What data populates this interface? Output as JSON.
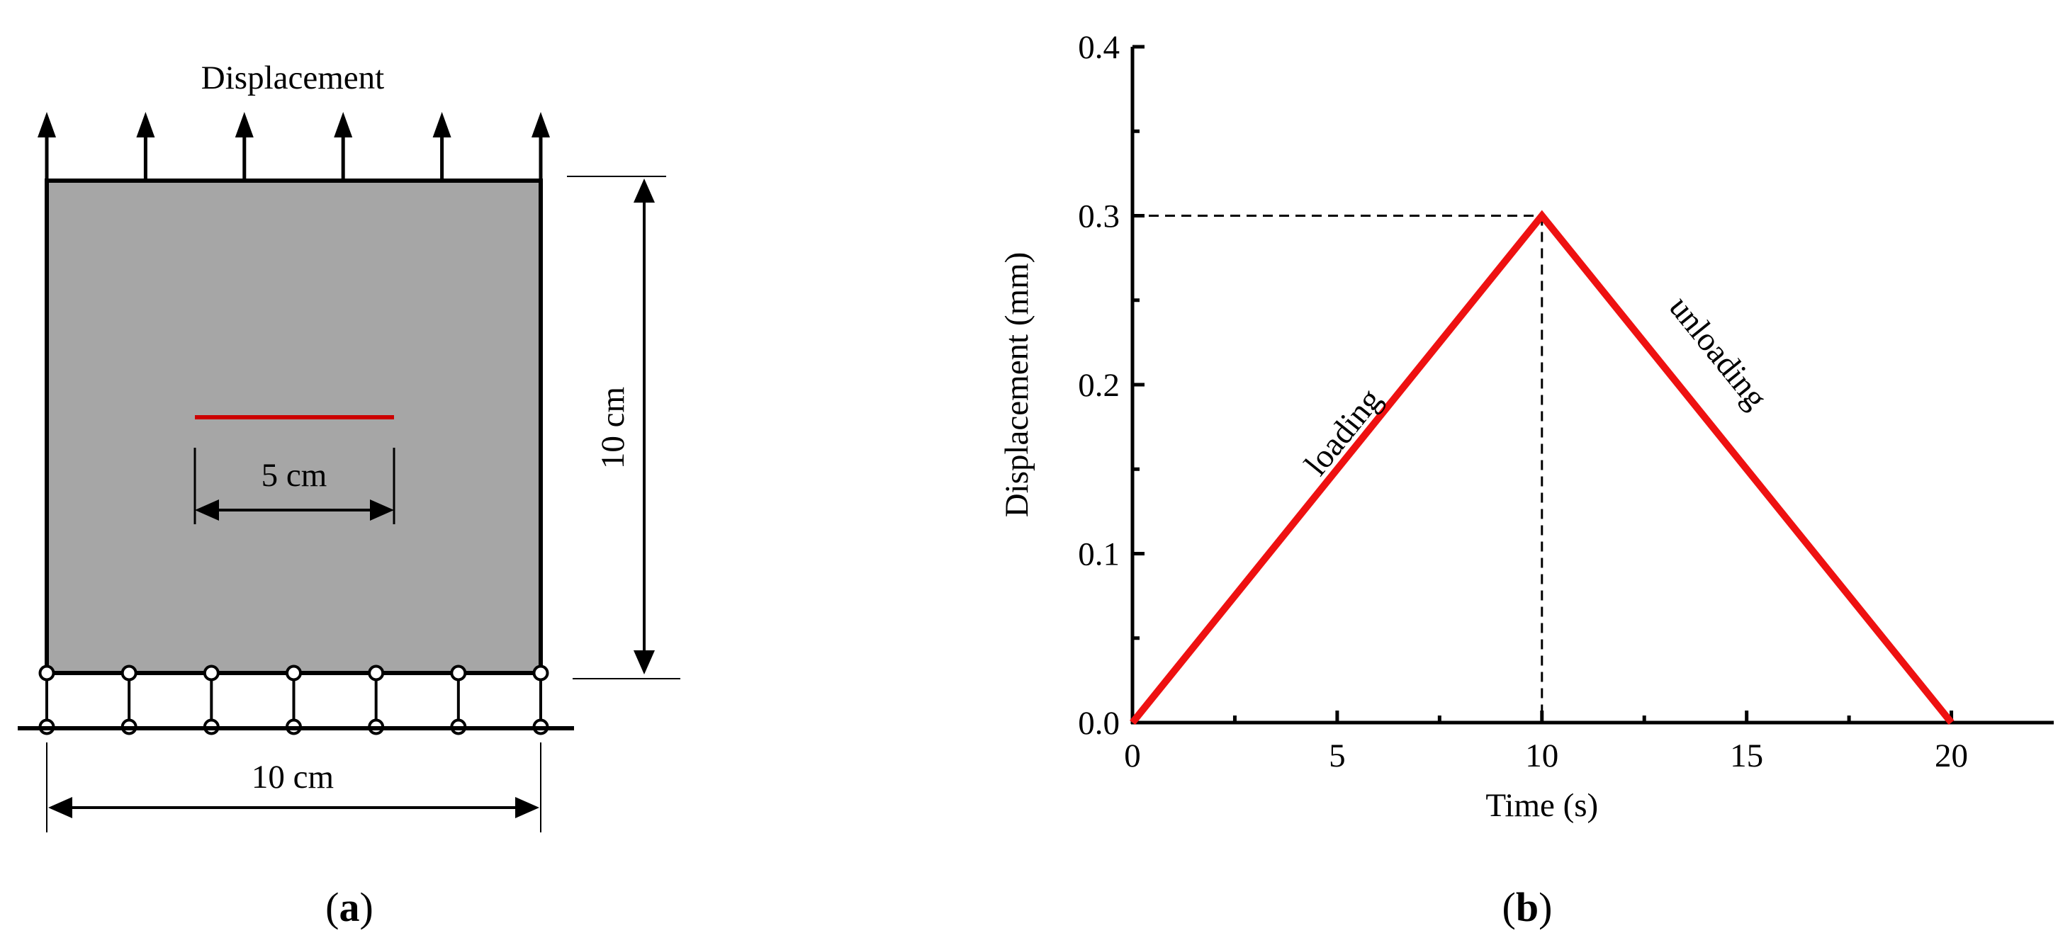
{
  "panel_a": {
    "top_label": "Displacement",
    "crack_length_label": "5 cm",
    "height_label": "10 cm",
    "width_label": "10 cm",
    "caption": {
      "open": "(",
      "letter": "a",
      "close": ")"
    },
    "plate_color": "#a6a6a6",
    "crack_color": "#cc0000"
  },
  "panel_b": {
    "caption": {
      "open": "(",
      "letter": "b",
      "close": ")"
    },
    "curve_color": "#ee1111",
    "annotations": {
      "loading": "loading",
      "unloading": "unloading"
    }
  },
  "chart_data": {
    "type": "line",
    "xlabel": "Time (s)",
    "ylabel": "Displacement (mm)",
    "xlim": [
      0,
      22.5
    ],
    "ylim": [
      0,
      0.4
    ],
    "xticks": [
      0,
      5,
      10,
      15,
      20
    ],
    "xtick_labels": [
      "0",
      "5",
      "10",
      "15",
      "20"
    ],
    "yticks": [
      0.0,
      0.1,
      0.2,
      0.3,
      0.4
    ],
    "ytick_labels": [
      "0.0",
      "0.1",
      "0.2",
      "0.3",
      "0.4"
    ],
    "grid": false,
    "x": [
      0,
      10,
      20
    ],
    "y": [
      0.0,
      0.3,
      0.0
    ],
    "reference_lines": {
      "peak_x": 10,
      "peak_y": 0.3
    }
  }
}
